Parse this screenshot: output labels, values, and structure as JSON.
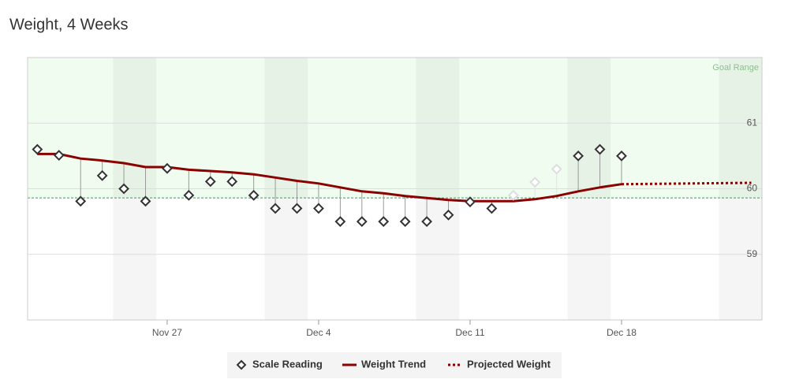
{
  "chart_data": {
    "type": "line",
    "title": "Weight, 4 Weeks",
    "x": [
      "Nov 21",
      "Nov 22",
      "Nov 23",
      "Nov 24",
      "Nov 25",
      "Nov 26",
      "Nov 27",
      "Nov 28",
      "Nov 29",
      "Nov 30",
      "Dec 1",
      "Dec 2",
      "Dec 3",
      "Dec 4",
      "Dec 5",
      "Dec 6",
      "Dec 7",
      "Dec 8",
      "Dec 9",
      "Dec 10",
      "Dec 11",
      "Dec 12",
      "Dec 13",
      "Dec 14",
      "Dec 15",
      "Dec 16",
      "Dec 17",
      "Dec 18"
    ],
    "series": [
      {
        "name": "Scale Reading",
        "color": "#333333",
        "style": "diamond",
        "point_colors": [
          "#333333",
          "#333333",
          "#333333",
          "#333333",
          "#333333",
          "#333333",
          "#333333",
          "#333333",
          "#333333",
          "#333333",
          "#333333",
          "#333333",
          "#333333",
          "#333333",
          "#333333",
          "#333333",
          "#333333",
          "#333333",
          "#333333",
          "#333333",
          "#333333",
          "#333333",
          "#dddddd",
          "#dddddd",
          "#dddddd",
          "#333333",
          "#333333",
          "#333333"
        ],
        "values": [
          60.6,
          60.51,
          59.81,
          60.2,
          60.0,
          59.81,
          60.31,
          59.9,
          60.11,
          60.11,
          59.9,
          59.7,
          59.7,
          59.7,
          59.5,
          59.5,
          59.5,
          59.5,
          59.5,
          59.6,
          59.8,
          59.7,
          59.9,
          60.1,
          60.3,
          60.5,
          60.6,
          60.5
        ]
      },
      {
        "name": "Weight Trend",
        "color": "#8b0000",
        "style": "solid",
        "values": [
          60.53,
          60.53,
          60.46,
          60.43,
          60.39,
          60.33,
          60.33,
          60.29,
          60.27,
          60.25,
          60.22,
          60.17,
          60.12,
          60.08,
          60.02,
          59.96,
          59.93,
          59.89,
          59.86,
          59.83,
          59.81,
          59.81,
          59.81,
          59.84,
          59.89,
          59.96,
          60.02,
          60.07
        ]
      },
      {
        "name": "Projected Weight",
        "color": "#8b0000",
        "style": "dotted",
        "x": [
          "Dec 18",
          "Dec 24"
        ],
        "values": [
          60.07,
          60.09
        ]
      }
    ],
    "xticks": [
      "Nov 27",
      "Dec 4",
      "Dec 11",
      "Dec 18"
    ],
    "ylim": [
      58,
      62
    ],
    "yticks": [
      59,
      60,
      61
    ],
    "grid": true,
    "goal_min": 59.86,
    "goal_label": "Goal Range"
  }
}
